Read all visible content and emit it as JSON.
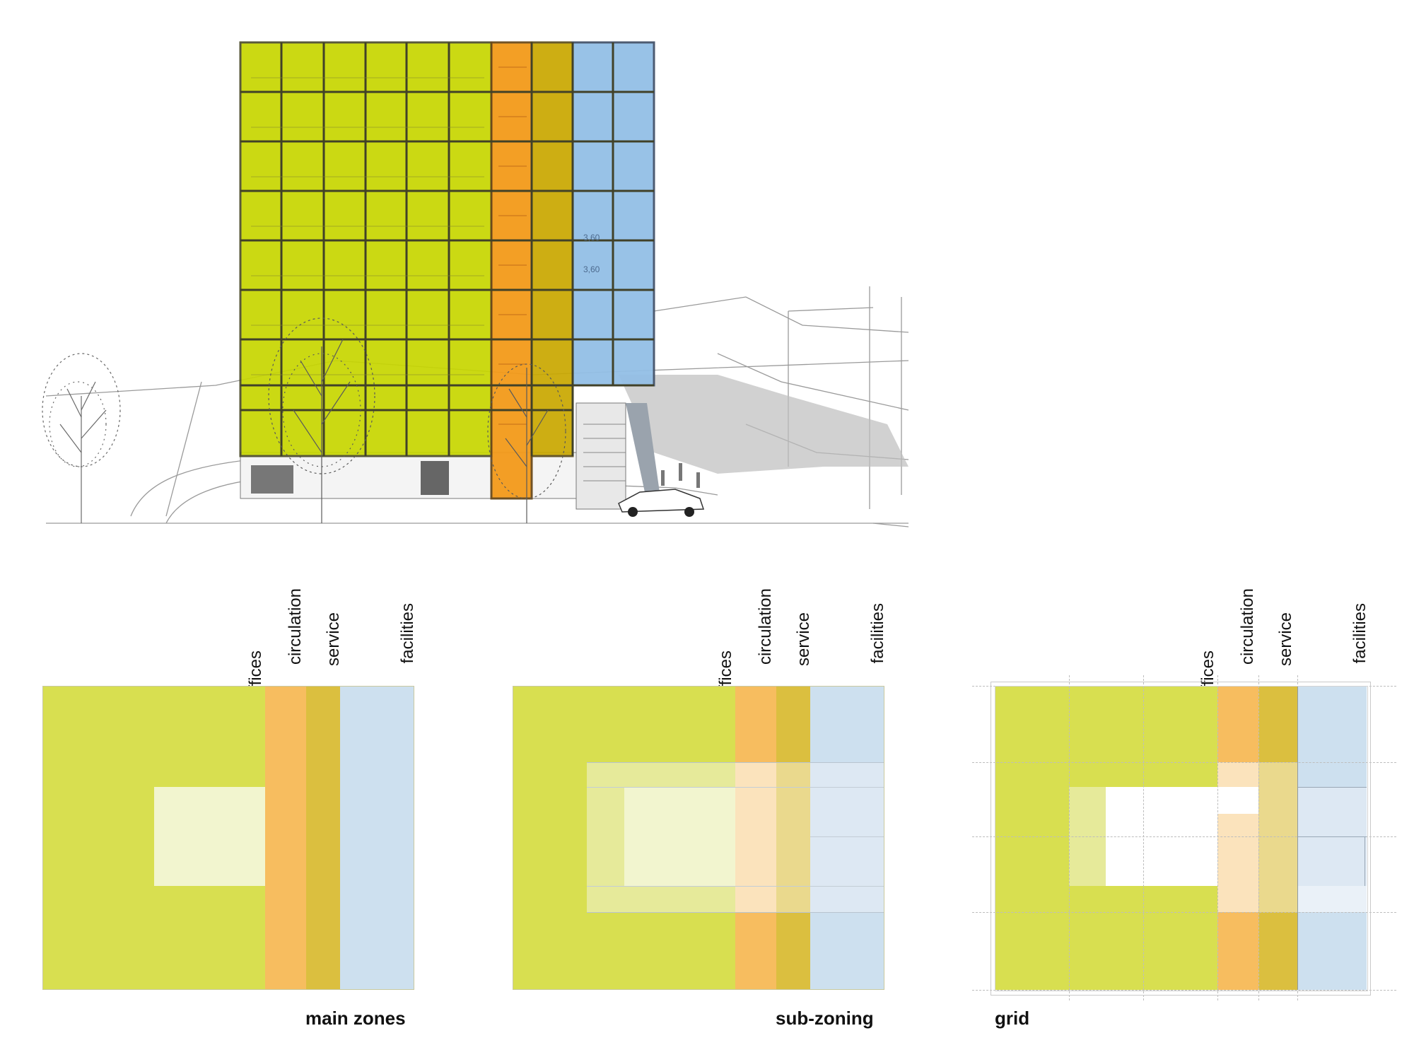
{
  "colors": {
    "offices": "#d8df50",
    "circulation": "#f7bd5f",
    "service": "#dbbf3f",
    "facilities": "#cde0ef",
    "courtyard": "#f2f5cf",
    "render_offices": "#c7d600",
    "render_circulation": "#f39a1a",
    "render_service": "#c9a800",
    "render_facilities": "#93bfe6"
  },
  "zone_labels": [
    "offices",
    "circulation",
    "service",
    "facilities"
  ],
  "diagrams": [
    {
      "id": "main",
      "caption": "main zones"
    },
    {
      "id": "sub",
      "caption": "sub-zoning"
    },
    {
      "id": "grid",
      "caption": "grid"
    }
  ],
  "render": {
    "dimension_labels": [
      "3,60",
      "3,60"
    ]
  }
}
